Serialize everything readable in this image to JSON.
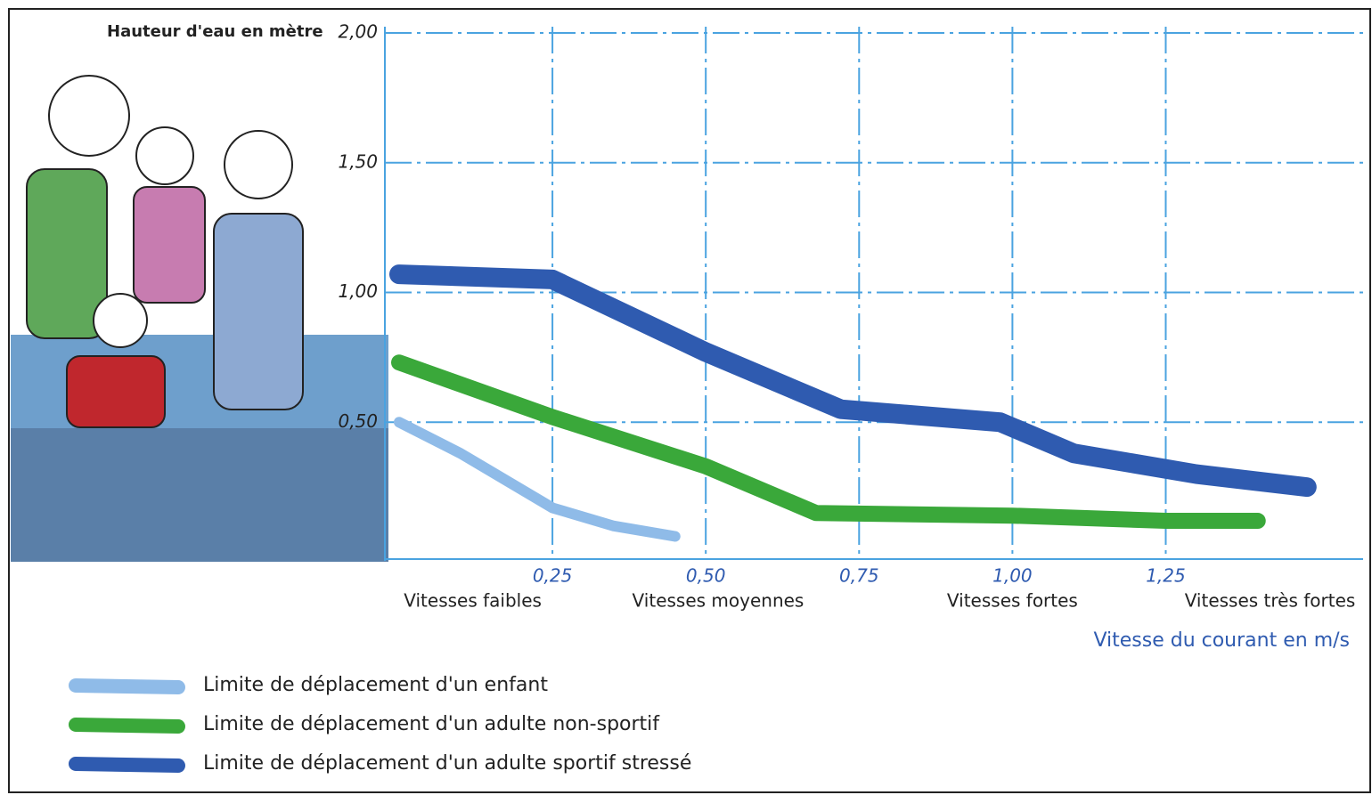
{
  "chart_data": {
    "type": "line",
    "y_label": "Hauteur d'eau en mètre",
    "x_label": "Vitesse du courant en m/s",
    "xlim": [
      0,
      1.55
    ],
    "ylim": [
      0,
      2
    ],
    "xticks": [
      {
        "value": 0.25,
        "label": "0,25"
      },
      {
        "value": 0.5,
        "label": "0,50"
      },
      {
        "value": 0.75,
        "label": "0,75"
      },
      {
        "value": 1,
        "label": "1,00"
      },
      {
        "value": 1.25,
        "label": "1,25"
      }
    ],
    "yticks": [
      {
        "value": 0.5,
        "label": "0,50"
      },
      {
        "value": 1,
        "label": "1,00"
      },
      {
        "value": 1.5,
        "label": "1,50"
      },
      {
        "value": 2,
        "label": "2,00"
      }
    ],
    "grid": true,
    "speed_categories": [
      {
        "x": 0.12,
        "label": "Vitesses faibles"
      },
      {
        "x": 0.52,
        "label": "Vitesses moyennes"
      },
      {
        "x": 1.0,
        "label": "Vitesses fortes"
      },
      {
        "x": 1.42,
        "label": "Vitesses très fortes"
      }
    ],
    "series": [
      {
        "name": "Limite de déplacement d'un enfant",
        "color": "#8fbbe8",
        "width": 12,
        "x": [
          0,
          0.1,
          0.25,
          0.35,
          0.45
        ],
        "values": [
          0.5,
          0.38,
          0.17,
          0.1,
          0.06
        ]
      },
      {
        "name": "Limite de déplacement d'un adulte non-sportif",
        "color": "#3aa83a",
        "width": 18,
        "x": [
          0,
          0.25,
          0.5,
          0.68,
          1.0,
          1.25,
          1.4
        ],
        "values": [
          0.73,
          0.52,
          0.33,
          0.15,
          0.14,
          0.12,
          0.12
        ]
      },
      {
        "name": "Limite de déplacement d'un adulte sportif stressé",
        "color": "#2f5bb0",
        "width": 22,
        "x": [
          0,
          0.25,
          0.5,
          0.72,
          0.98,
          1.1,
          1.3,
          1.48
        ],
        "values": [
          1.07,
          1.05,
          0.77,
          0.55,
          0.5,
          0.38,
          0.3,
          0.25
        ]
      }
    ]
  }
}
